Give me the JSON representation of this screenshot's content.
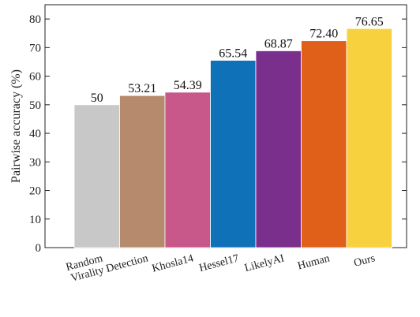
{
  "chart_data": {
    "type": "bar",
    "categories": [
      "Random",
      "Virality Detection",
      "Khosla14",
      "Hessel17",
      "LikelyAI",
      "Human",
      "Ours"
    ],
    "values": [
      50,
      53.21,
      54.39,
      65.54,
      68.87,
      72.4,
      76.65
    ],
    "value_labels": [
      "50",
      "53.21",
      "54.39",
      "65.54",
      "68.87",
      "72.40",
      "76.65"
    ],
    "colors": [
      "#c8c8c8",
      "#b68a6c",
      "#c8578a",
      "#0f72b8",
      "#7b2f8c",
      "#e0601a",
      "#f8d23e"
    ],
    "title": "",
    "xlabel": "",
    "ylabel": "Pairwise accuracy (%)",
    "ylim": [
      0,
      85
    ],
    "yticks": [
      0,
      10,
      20,
      30,
      40,
      50,
      60,
      70,
      80
    ],
    "grid": false
  }
}
